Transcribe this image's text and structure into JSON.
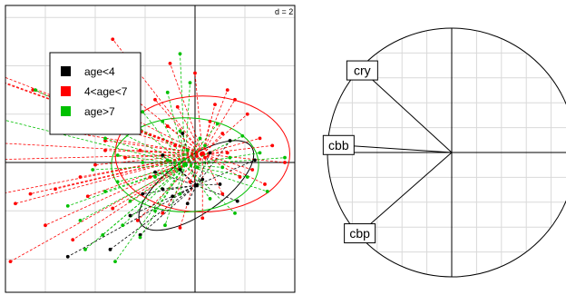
{
  "chart_data": [
    {
      "type": "scatter",
      "kind": "PCA individuals factor map with group ellipses",
      "grid_label": "d = 2",
      "grid": true,
      "xlim": [
        -10,
        4
      ],
      "ylim": [
        -6,
        6.5
      ],
      "legend_position": "top-left",
      "groups": [
        {
          "name": "age<4",
          "color": "#000000",
          "ellipse": {
            "cx": 0.05,
            "cy": -0.95,
            "rx": 2.7,
            "ry": 1.15,
            "angle": 35
          },
          "points": [
            [
              -0.5,
              1.2
            ],
            [
              -1.3,
              0.3
            ],
            [
              -1.6,
              -0.4
            ],
            [
              -2.1,
              -1.3
            ],
            [
              -2.6,
              -2.2
            ],
            [
              -2.2,
              -3.0
            ],
            [
              -3.4,
              -3.6
            ],
            [
              -1.3,
              -1.1
            ],
            [
              -0.3,
              -1.7
            ],
            [
              0.3,
              -0.7
            ],
            [
              1.0,
              -0.9
            ],
            [
              1.7,
              -1.6
            ],
            [
              -0.9,
              -1.4
            ],
            [
              1.4,
              0.9
            ],
            [
              2.4,
              0.1
            ],
            [
              -5.1,
              -3.9
            ],
            [
              -0.6,
              -0.3
            ],
            [
              0.6,
              0.4
            ]
          ]
        },
        {
          "name": "4<age<7",
          "color": "#ff0000",
          "ellipse": {
            "cx": 0.3,
            "cy": 0.35,
            "rx": 3.5,
            "ry": 2.4,
            "angle": 0
          },
          "points": [
            [
              -10.3,
              4.6
            ],
            [
              -9.6,
              4.0
            ],
            [
              -8.4,
              3.6
            ],
            [
              -6.5,
              3.0
            ],
            [
              -5.3,
              3.3
            ],
            [
              -3.3,
              5.1
            ],
            [
              -3.1,
              3.2
            ],
            [
              -1.0,
              4.1
            ],
            [
              0.0,
              3.7
            ],
            [
              1.3,
              3.0
            ],
            [
              1.6,
              2.6
            ],
            [
              2.1,
              2.0
            ],
            [
              -1.6,
              2.6
            ],
            [
              -0.7,
              2.3
            ],
            [
              0.6,
              1.7
            ],
            [
              1.1,
              1.2
            ],
            [
              2.6,
              1.0
            ],
            [
              3.1,
              0.7
            ],
            [
              3.6,
              0.0
            ],
            [
              -2.6,
              1.4
            ],
            [
              -3.6,
              0.5
            ],
            [
              -4.0,
              -0.1
            ],
            [
              -4.6,
              -0.6
            ],
            [
              -5.6,
              -1.1
            ],
            [
              -6.6,
              -1.3
            ],
            [
              -7.2,
              -1.7
            ],
            [
              -8.3,
              -1.4
            ],
            [
              -4.3,
              -1.4
            ],
            [
              -3.3,
              -1.9
            ],
            [
              -2.3,
              -2.4
            ],
            [
              -1.3,
              -2.1
            ],
            [
              -0.6,
              -2.7
            ],
            [
              0.3,
              -2.3
            ],
            [
              1.1,
              -1.3
            ],
            [
              1.8,
              -0.6
            ],
            [
              2.3,
              -0.3
            ],
            [
              -2.8,
              0.2
            ],
            [
              -1.8,
              -0.6
            ],
            [
              -0.8,
              0.7
            ],
            [
              0.4,
              0.2
            ],
            [
              1.3,
              0.4
            ],
            [
              -6.0,
              -2.6
            ],
            [
              -7.4,
              -4.1
            ],
            [
              -4.9,
              -3.2
            ],
            [
              -3.6,
              0.9
            ],
            [
              -2.2,
              0.5
            ],
            [
              -1.1,
              1.5
            ],
            [
              0.8,
              2.4
            ],
            [
              2.8,
              -0.9
            ],
            [
              -0.2,
              -0.8
            ],
            [
              -9.6,
              0.9
            ],
            [
              -8.6,
              0.1
            ],
            [
              -5.3,
              1.3
            ],
            [
              -4.3,
              1.8
            ]
          ]
        },
        {
          "name": "age>7",
          "color": "#00c000",
          "ellipse": {
            "cx": -0.4,
            "cy": -0.1,
            "rx": 2.95,
            "ry": 1.95,
            "angle": 0
          },
          "points": [
            [
              -5.6,
              4.3
            ],
            [
              -6.4,
              3.0
            ],
            [
              -8.6,
              2.0
            ],
            [
              -0.6,
              4.5
            ],
            [
              -0.2,
              3.3
            ],
            [
              -1.1,
              2.9
            ],
            [
              -2.1,
              2.1
            ],
            [
              -1.3,
              1.7
            ],
            [
              -0.6,
              1.3
            ],
            [
              0.9,
              1.6
            ],
            [
              1.9,
              1.1
            ],
            [
              2.6,
              0.4
            ],
            [
              3.6,
              0.2
            ],
            [
              -3.6,
              1.0
            ],
            [
              -3.1,
              0.3
            ],
            [
              -2.1,
              0.0
            ],
            [
              -1.1,
              0.1
            ],
            [
              0.1,
              -0.2
            ],
            [
              1.1,
              -0.2
            ],
            [
              2.1,
              -0.6
            ],
            [
              2.9,
              -1.2
            ],
            [
              -3.6,
              -1.2
            ],
            [
              -2.6,
              -1.6
            ],
            [
              -1.6,
              -2.0
            ],
            [
              -0.6,
              -1.3
            ],
            [
              0.6,
              -1.5
            ],
            [
              1.6,
              -2.1
            ],
            [
              -2.9,
              -2.6
            ],
            [
              -2.2,
              -3.1
            ],
            [
              -1.2,
              -2.6
            ],
            [
              -3.7,
              -3.0
            ],
            [
              -4.6,
              -2.4
            ],
            [
              -5.1,
              -1.8
            ],
            [
              -4.1,
              -0.3
            ],
            [
              -3.1,
              -0.8
            ],
            [
              -1.6,
              -0.6
            ],
            [
              0.4,
              0.7
            ],
            [
              1.4,
              0.2
            ],
            [
              -4.4,
              -3.6
            ],
            [
              -3.2,
              -4.1
            ],
            [
              -0.3,
              0.5
            ],
            [
              0.2,
              1.0
            ]
          ]
        }
      ]
    },
    {
      "type": "scatter",
      "kind": "PCA correlation circle",
      "grid": true,
      "xlim": [
        -1,
        1
      ],
      "ylim": [
        -1,
        1
      ],
      "variables": [
        {
          "name": "cry",
          "x": -0.72,
          "y": 0.66
        },
        {
          "name": "cbb",
          "x": -0.91,
          "y": 0.06
        },
        {
          "name": "cbp",
          "x": -0.74,
          "y": -0.65
        }
      ]
    }
  ]
}
